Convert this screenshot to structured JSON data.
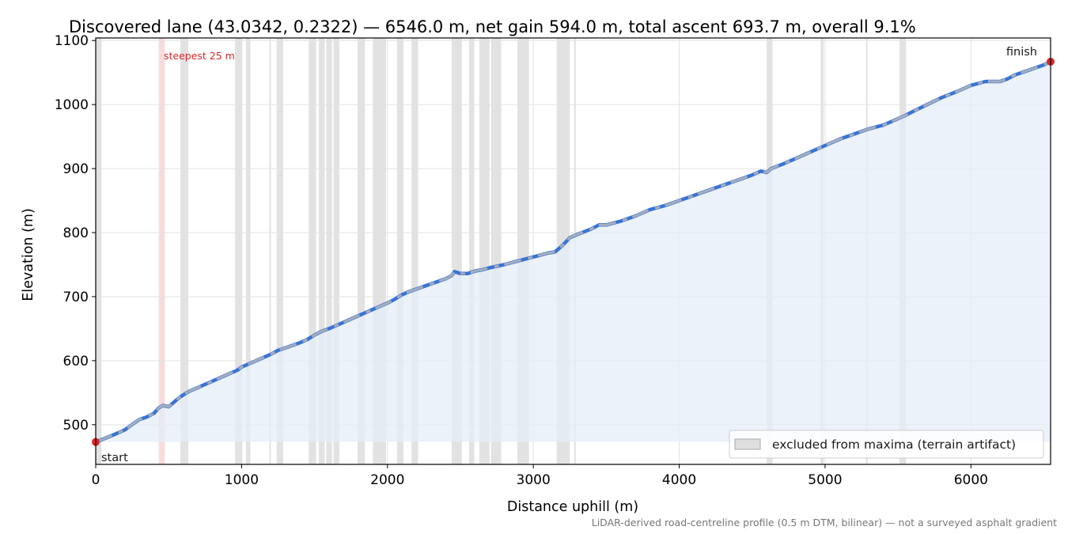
{
  "chart_data": {
    "type": "line",
    "title": "Discovered lane (43.0342, 0.2322) — 6546.0 m, net gain 594.0 m, total ascent 693.7 m, overall 9.1%",
    "xlabel": "Distance uphill (m)",
    "ylabel": "Elevation (m)",
    "xlim": [
      0,
      6546
    ],
    "ylim": [
      438,
      1104
    ],
    "x_ticks": [
      0,
      1000,
      2000,
      3000,
      4000,
      5000,
      6000
    ],
    "y_ticks": [
      500,
      600,
      700,
      800,
      900,
      1000,
      1100
    ],
    "grid": true,
    "legend": {
      "placement": "lower-right",
      "entries": [
        "excluded from maxima (terrain artifact)"
      ]
    },
    "annotations": {
      "start_label": "start",
      "finish_label": "finish",
      "steepest_label": "steepest 25 m",
      "steepest_band": [
        432,
        474
      ],
      "footnote": "LiDAR-derived road-centreline profile (0.5 m DTM, bilinear) — not a surveyed asphalt gradient"
    },
    "series": [
      {
        "x": [
          0,
          100,
          200,
          260,
          300,
          350,
          400,
          430,
          460,
          500,
          530,
          560,
          590,
          640,
          700,
          800,
          900,
          970,
          1000,
          1030,
          1060,
          1100,
          1200,
          1250,
          1300,
          1400,
          1450,
          1500,
          1550,
          1600,
          1700,
          1800,
          1900,
          1950,
          2000,
          2050,
          2100,
          2150,
          2200,
          2250,
          2300,
          2400,
          2440,
          2460,
          2500,
          2550,
          2600,
          2650,
          2700,
          2800,
          2900,
          3000,
          3100,
          3150,
          3200,
          3250,
          3300,
          3400,
          3450,
          3500,
          3550,
          3600,
          3700,
          3800,
          3900,
          4000,
          4100,
          4200,
          4300,
          4400,
          4500,
          4560,
          4600,
          4630,
          4700,
          4800,
          4900,
          5000,
          5100,
          5200,
          5300,
          5400,
          5500,
          5550,
          5600,
          5700,
          5800,
          5900,
          6000,
          6100,
          6150,
          6200,
          6250,
          6300,
          6400,
          6500,
          6546
        ],
        "y": [
          473,
          482,
          492,
          502,
          508,
          512,
          518,
          526,
          530,
          528,
          534,
          540,
          545,
          552,
          558,
          568,
          578,
          585,
          590,
          593,
          596,
          600,
          610,
          616,
          620,
          628,
          633,
          640,
          646,
          650,
          660,
          670,
          680,
          685,
          690,
          696,
          703,
          708,
          712,
          716,
          720,
          728,
          733,
          739,
          736,
          736,
          740,
          742,
          745,
          750,
          756,
          762,
          768,
          770,
          780,
          792,
          797,
          806,
          812,
          812,
          815,
          818,
          826,
          836,
          842,
          850,
          858,
          866,
          874,
          882,
          890,
          896,
          894,
          900,
          906,
          916,
          926,
          936,
          946,
          954,
          962,
          968,
          978,
          983,
          989,
          1000,
          1011,
          1020,
          1030,
          1036,
          1036,
          1036,
          1040,
          1046,
          1054,
          1062,
          1067
        ]
      }
    ],
    "excluded_bands": [
      [
        0,
        40
      ],
      [
        580,
        635
      ],
      [
        955,
        1005
      ],
      [
        1030,
        1060
      ],
      [
        1190,
        1200
      ],
      [
        1240,
        1285
      ],
      [
        1460,
        1510
      ],
      [
        1530,
        1570
      ],
      [
        1580,
        1620
      ],
      [
        1630,
        1670
      ],
      [
        1795,
        1845
      ],
      [
        1900,
        1990
      ],
      [
        2065,
        2110
      ],
      [
        2165,
        2210
      ],
      [
        2440,
        2510
      ],
      [
        2560,
        2595
      ],
      [
        2630,
        2700
      ],
      [
        2710,
        2780
      ],
      [
        2890,
        2970
      ],
      [
        3160,
        3250
      ],
      [
        3280,
        3290
      ],
      [
        4600,
        4640
      ],
      [
        4970,
        4990
      ],
      [
        5280,
        5290
      ],
      [
        5510,
        5555
      ]
    ],
    "colors": {
      "band": "#b9b9b9",
      "steepest_band": "#f2c0c0",
      "area_fill": "#e6edf8",
      "line": "#3a73d6",
      "line_overlay": "#a4aebd",
      "endpoints": "#d62728",
      "grid": "#e2e2e2"
    }
  }
}
